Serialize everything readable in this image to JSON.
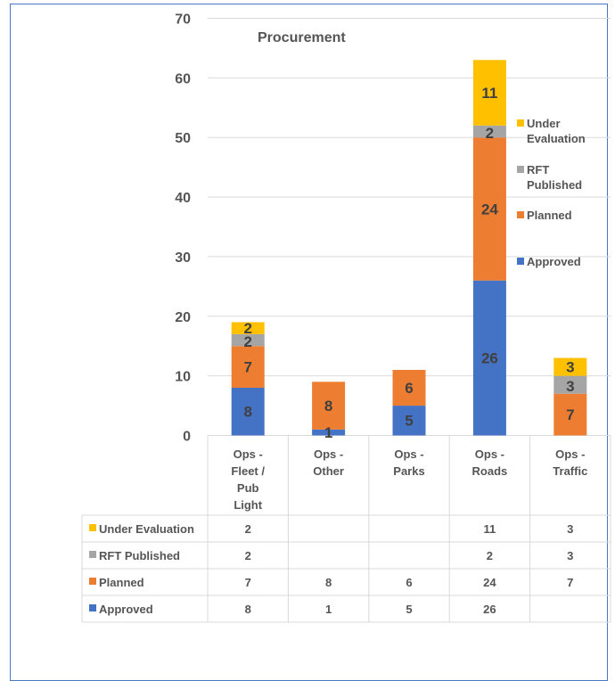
{
  "chart_data": {
    "type": "bar",
    "stacked": true,
    "title": "Procurement",
    "categories": [
      "Ops - Fleet / Pub Light",
      "Ops - Other",
      "Ops - Parks",
      "Ops - Roads",
      "Ops - Traffic"
    ],
    "category_lines": [
      [
        "Ops -",
        "Fleet /",
        "Pub",
        "Light"
      ],
      [
        "Ops -",
        "Other"
      ],
      [
        "Ops -",
        "Parks"
      ],
      [
        "Ops -",
        "Roads"
      ],
      [
        "Ops -",
        "Traffic"
      ]
    ],
    "series": [
      {
        "name": "Approved",
        "values": [
          8,
          1,
          5,
          26,
          null
        ],
        "color": "#4472c4"
      },
      {
        "name": "Planned",
        "values": [
          7,
          8,
          6,
          24,
          7
        ],
        "color": "#ed7d31"
      },
      {
        "name": "RFT Published",
        "values": [
          2,
          null,
          null,
          2,
          3
        ],
        "color": "#a5a5a5"
      },
      {
        "name": "Under Evaluation",
        "values": [
          2,
          null,
          null,
          11,
          3
        ],
        "color": "#ffc000"
      }
    ],
    "ylim": [
      0,
      70
    ],
    "yticks": [
      0,
      10,
      20,
      30,
      40,
      50,
      60,
      70
    ],
    "grid": true,
    "legend": "right",
    "data_table": true
  }
}
